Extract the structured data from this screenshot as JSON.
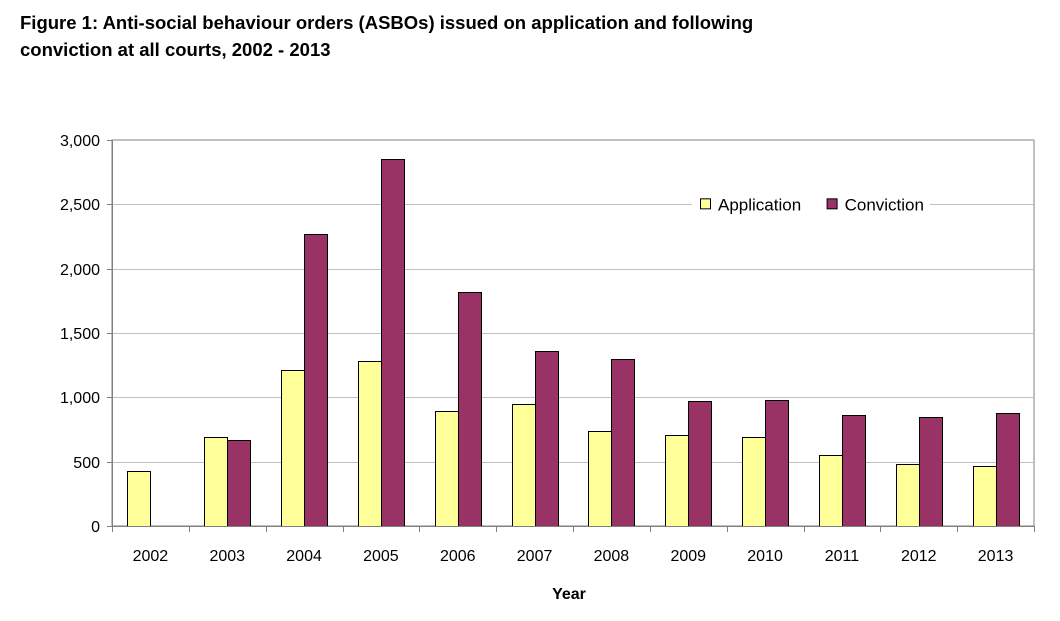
{
  "figure": {
    "title_line1": "Figure 1: Anti-social behaviour orders (ASBOs) issued on application and following",
    "title_line2": "conviction at all courts, 2002 - 2013"
  },
  "colors": {
    "application": "#FFFF99",
    "conviction": "#993366",
    "bar_outline": "#000000",
    "gridline": "#C0C0C0",
    "axis": "#808080"
  },
  "chart_data": {
    "type": "bar",
    "title": "Figure 1: Anti-social behaviour orders (ASBOs) issued on application and following conviction at all courts, 2002 - 2013",
    "xlabel": "Year",
    "ylabel": "",
    "ylim": [
      0,
      3000
    ],
    "yticks": [
      0,
      500,
      1000,
      1500,
      2000,
      2500,
      3000
    ],
    "ytick_labels": [
      "0",
      "500",
      "1,000",
      "1,500",
      "2,000",
      "2,500",
      "3,000"
    ],
    "grid": "horizontal",
    "legend_position": "top-right",
    "categories": [
      "2002",
      "2003",
      "2004",
      "2005",
      "2006",
      "2007",
      "2008",
      "2009",
      "2010",
      "2011",
      "2012",
      "2013"
    ],
    "series": [
      {
        "name": "Application",
        "color": "#FFFF99",
        "values": [
          429,
          694,
          1211,
          1284,
          891,
          947,
          738,
          708,
          695,
          552,
          482,
          468
        ]
      },
      {
        "name": "Conviction",
        "color": "#993366",
        "values": [
          null,
          666,
          2269,
          2849,
          1822,
          1358,
          1299,
          975,
          976,
          863,
          847,
          876
        ]
      }
    ]
  }
}
